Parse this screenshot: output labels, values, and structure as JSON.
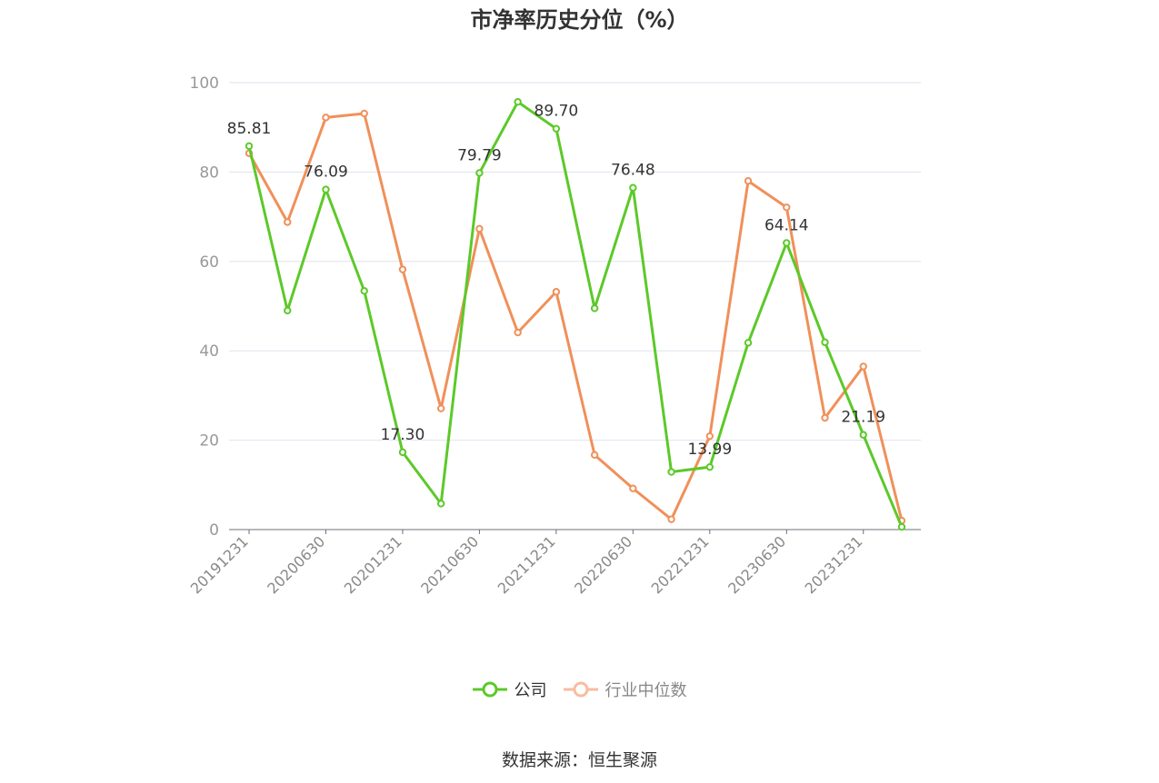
{
  "source_text": "数据来源：恒生聚源",
  "chart_data": {
    "type": "line",
    "title": "市净率历史分位（%）",
    "ylim": [
      0,
      100
    ],
    "yticks": [
      0,
      20,
      40,
      60,
      80,
      100
    ],
    "grid": true,
    "legend_position": "bottom",
    "x": [
      "20191231",
      "20200331",
      "20200630",
      "20200930",
      "20201231",
      "20210331",
      "20210630",
      "20210930",
      "20211231",
      "20220331",
      "20220630",
      "20220930",
      "20221231",
      "20230331",
      "20230630",
      "20230930",
      "20231231",
      "20240331"
    ],
    "x_tick_labels": [
      "20191231",
      "20200630",
      "20201231",
      "20210630",
      "20211231",
      "20220630",
      "20221231",
      "20230630",
      "20231231"
    ],
    "series": [
      {
        "name": "公司",
        "color": "#5cc929",
        "values": [
          85.81,
          49.0,
          76.09,
          53.4,
          17.3,
          5.8,
          79.79,
          95.7,
          89.7,
          49.5,
          76.48,
          12.9,
          13.99,
          41.8,
          64.14,
          41.9,
          21.19,
          0.6
        ],
        "data_labels": [
          "85.81",
          "",
          "76.09",
          "",
          "17.30",
          "",
          "79.79",
          "",
          "89.70",
          "",
          "76.48",
          "",
          "13.99",
          "",
          "64.14",
          "",
          "21.19",
          ""
        ]
      },
      {
        "name": "行业中位数",
        "color": "#f0905a",
        "legend_color": "#f7bca0",
        "values": [
          84.2,
          68.8,
          92.2,
          93.1,
          58.2,
          27.1,
          67.3,
          44.1,
          53.2,
          16.7,
          9.2,
          2.3,
          20.9,
          78.0,
          72.1,
          25.0,
          36.5,
          2.0
        ],
        "data_labels": [
          "",
          "",
          "",
          "",
          "",
          "",
          "",
          "",
          "",
          "",
          "",
          "",
          "",
          "",
          "",
          "",
          "",
          ""
        ]
      }
    ]
  }
}
